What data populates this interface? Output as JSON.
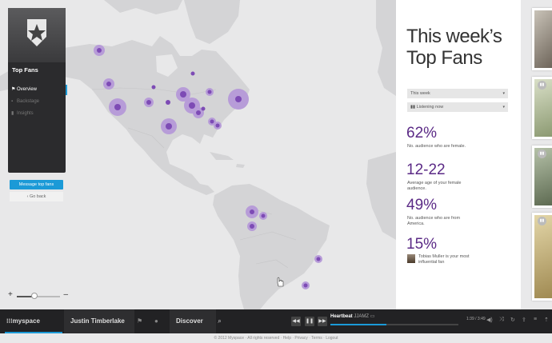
{
  "sidebar": {
    "title": "Top Fans",
    "items": [
      {
        "label": "Overview",
        "icon": "flag-icon",
        "active": true
      },
      {
        "label": "Backstage",
        "icon": "lock-icon",
        "active": false
      },
      {
        "label": "Insights",
        "icon": "bar-chart-icon",
        "active": false
      }
    ],
    "message_button": "Message top fans",
    "go_back": "Go back"
  },
  "zoom": {
    "plus": "+",
    "minus": "–",
    "level": 0.4
  },
  "panel": {
    "title": "This week’s Top Fans",
    "filters": [
      {
        "label": "This week"
      },
      {
        "label": "Listening now"
      }
    ],
    "stats": [
      {
        "value": "62%",
        "desc": "No. audience who are female."
      },
      {
        "value": "12-22",
        "desc": "Average age of your female audience."
      },
      {
        "value": "49%",
        "desc": "No. audience who are from America."
      },
      {
        "value": "15%",
        "desc": "Tobias Muller is your most influential fan"
      }
    ]
  },
  "player": {
    "brand": "myspace",
    "artist": "Justin Timberlake",
    "discover": "Discover",
    "track_title": "Heartbeat",
    "track_artist": "JJAMZ",
    "elapsed": "1:39",
    "duration": "3:49",
    "progress": 0.44
  },
  "footer": "© 2012 Myspace · All rights reserved · Help · Privacy · Terms · Logout",
  "colors": {
    "accent": "#1b9ad7",
    "stat": "#5b2a86",
    "dot": "#8e5cc2"
  }
}
